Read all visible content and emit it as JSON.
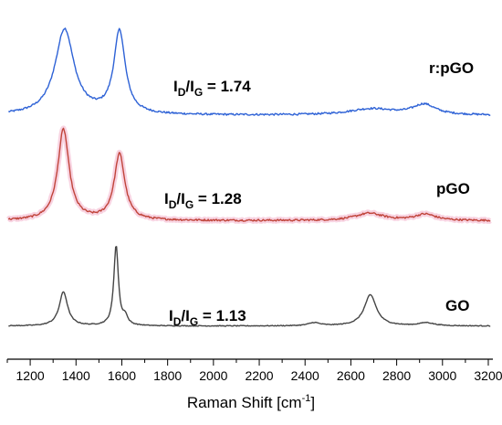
{
  "chart_data": {
    "type": "line",
    "xlabel": "Raman Shift [cm",
    "xlabel_sup": "-1",
    "xlabel_close": "]",
    "ylabel": "",
    "xlim": [
      1100,
      3220
    ],
    "x_ticks": [
      1200,
      1400,
      1600,
      1800,
      2000,
      2200,
      2400,
      2600,
      2800,
      3000,
      3200
    ],
    "grid": false,
    "y_axis_shown": false,
    "series": [
      {
        "name": "r:pGO",
        "color": "#2e62d6",
        "label_parts": [
          "I",
          "D",
          "/I",
          "G",
          " = 1.74"
        ],
        "offset": 2.0,
        "baseline": 0.06,
        "peaks": [
          {
            "x": 1350,
            "h": 0.83,
            "w": 50
          },
          {
            "x": 1590,
            "h": 0.8,
            "w": 30
          },
          {
            "x": 2690,
            "h": 0.06,
            "w": 120
          },
          {
            "x": 2920,
            "h": 0.1,
            "w": 60
          }
        ]
      },
      {
        "name": "pGO",
        "color": "#c0443a",
        "band_color": "#f6c8da",
        "label_parts": [
          "I",
          "D",
          "/I",
          "G",
          " = 1.28"
        ],
        "offset": 1.0,
        "baseline": 0.04,
        "peaks": [
          {
            "x": 1345,
            "h": 0.88,
            "w": 30
          },
          {
            "x": 1590,
            "h": 0.64,
            "w": 28
          },
          {
            "x": 2680,
            "h": 0.07,
            "w": 75
          },
          {
            "x": 2925,
            "h": 0.06,
            "w": 55
          }
        ]
      },
      {
        "name": "GO",
        "color": "#454545",
        "label_parts": [
          "I",
          "D",
          "/I",
          "G",
          " = 1.13"
        ],
        "offset": 0.0,
        "baseline": 0.02,
        "peaks": [
          {
            "x": 1345,
            "h": 0.33,
            "w": 22
          },
          {
            "x": 1575,
            "h": 0.78,
            "w": 12
          },
          {
            "x": 1615,
            "h": 0.08,
            "w": 12
          },
          {
            "x": 2440,
            "h": 0.03,
            "w": 30
          },
          {
            "x": 2685,
            "h": 0.3,
            "w": 32
          },
          {
            "x": 2930,
            "h": 0.03,
            "w": 40
          }
        ]
      }
    ]
  }
}
